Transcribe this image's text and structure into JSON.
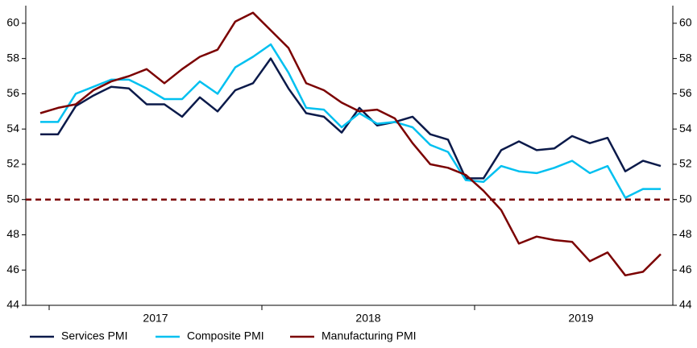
{
  "chart_data": {
    "type": "line",
    "categories": [
      null,
      null,
      null,
      null,
      null,
      null,
      null,
      null,
      null,
      null,
      null,
      null,
      null,
      null,
      null,
      null,
      null,
      null,
      null,
      null,
      null,
      null,
      null,
      null,
      null,
      null,
      null,
      null,
      null,
      null,
      null,
      null,
      null,
      null,
      null,
      null
    ],
    "xticks": [
      "2017",
      "2018",
      "2019"
    ],
    "series": [
      {
        "name": "Services PMI",
        "color": "#0b1a4a",
        "values": [
          53.7,
          53.7,
          55.3,
          55.9,
          56.4,
          56.3,
          55.4,
          55.4,
          54.7,
          55.8,
          55.0,
          56.2,
          56.6,
          58.0,
          56.3,
          54.9,
          54.7,
          53.8,
          55.2,
          54.2,
          54.4,
          54.7,
          53.7,
          53.4,
          51.2,
          51.2,
          52.8,
          53.3,
          52.8,
          52.9,
          53.6,
          53.2,
          53.5,
          51.6,
          52.2,
          51.9
        ]
      },
      {
        "name": "Composite PMI",
        "color": "#00c0f0",
        "values": [
          54.4,
          54.4,
          56.0,
          56.4,
          56.8,
          56.8,
          56.3,
          55.7,
          55.7,
          56.7,
          56.0,
          57.5,
          58.1,
          58.8,
          57.2,
          55.2,
          55.1,
          54.1,
          54.9,
          54.3,
          54.4,
          54.1,
          53.1,
          52.7,
          51.1,
          51.0,
          51.9,
          51.6,
          51.5,
          51.8,
          52.2,
          51.5,
          51.9,
          50.1,
          50.6,
          50.6
        ]
      },
      {
        "name": "Manufacturing PMI",
        "color": "#7b0000",
        "values": [
          54.9,
          55.2,
          55.4,
          56.2,
          56.7,
          57.0,
          57.4,
          56.6,
          57.4,
          58.1,
          58.5,
          60.1,
          60.6,
          59.6,
          58.6,
          56.6,
          56.2,
          55.5,
          55.0,
          55.1,
          54.6,
          53.2,
          52.0,
          51.8,
          51.4,
          50.5,
          49.4,
          47.5,
          47.9,
          47.7,
          47.6,
          46.5,
          47.0,
          45.7,
          45.9,
          46.9
        ]
      }
    ],
    "reference_line": {
      "value": 50,
      "color": "#7b0000"
    },
    "ylim": [
      44,
      61
    ],
    "yticks": [
      44,
      46,
      48,
      50,
      52,
      54,
      56,
      58,
      60
    ],
    "y2lim": [
      44,
      61
    ],
    "y2ticks": [
      44,
      46,
      48,
      50,
      52,
      54,
      56,
      58,
      60
    ],
    "grid": false,
    "legend": "bottom"
  }
}
